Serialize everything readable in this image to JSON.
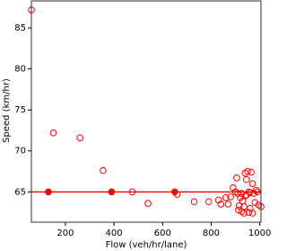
{
  "chart_data": {
    "type": "scatter",
    "xlabel": "Flow (veh/hr/lane)",
    "ylabel": "Speed (km/hr)",
    "xlim": [
      60,
      1005
    ],
    "ylim": [
      61.3,
      88.3
    ],
    "xticks": [
      200,
      400,
      600,
      800,
      1000
    ],
    "yticks": [
      65,
      70,
      75,
      80,
      85
    ],
    "hline": {
      "value": 65,
      "color": "#ff0000"
    },
    "series": [
      {
        "color": "#ff0000",
        "filled": false,
        "x": [
          60,
          150,
          260,
          355,
          475,
          540,
          660,
          730,
          790,
          830,
          840,
          860,
          870,
          880,
          890,
          900,
          905,
          910,
          915,
          920,
          925,
          930,
          935,
          940,
          945,
          950,
          955,
          960,
          965,
          970,
          975,
          980,
          985,
          990,
          995,
          1005,
          940,
          955,
          925,
          945,
          912,
          935,
          960,
          970
        ],
        "y": [
          87.2,
          72.2,
          71.6,
          67.6,
          65.0,
          63.6,
          64.7,
          63.8,
          63.8,
          64.0,
          63.5,
          64.3,
          63.5,
          64.4,
          65.5,
          65.0,
          66.7,
          64.8,
          63.3,
          64.3,
          62.6,
          63.9,
          62.4,
          67.3,
          64.6,
          67.5,
          65.0,
          63.0,
          67.4,
          66.0,
          64.8,
          63.7,
          65.2,
          65.0,
          63.4,
          63.2,
          64.5,
          62.5,
          64.8,
          66.5,
          62.8,
          63.2,
          64.9,
          62.4
        ]
      },
      {
        "color": "#ff0000",
        "filled": true,
        "x": [
          130,
          390,
          650
        ],
        "y": [
          65,
          65,
          65
        ]
      }
    ]
  }
}
